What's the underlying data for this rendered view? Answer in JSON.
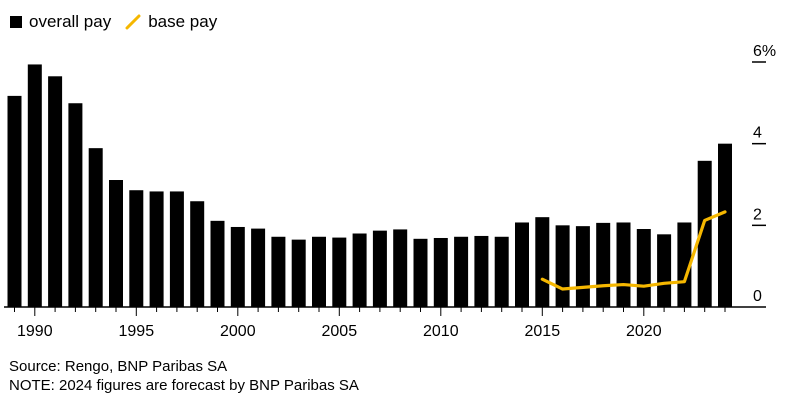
{
  "legend": {
    "bar_label": "overall pay",
    "line_label": "base pay"
  },
  "footer": {
    "source": "Source: Rengo, BNP Paribas SA",
    "note": "NOTE: 2024 figures are forecast by BNP Paribas SA"
  },
  "chart_data": {
    "type": "bar",
    "x": [
      1989,
      1990,
      1991,
      1992,
      1993,
      1994,
      1995,
      1996,
      1997,
      1998,
      1999,
      2000,
      2001,
      2002,
      2003,
      2004,
      2005,
      2006,
      2007,
      2008,
      2009,
      2010,
      2011,
      2012,
      2013,
      2014,
      2015,
      2016,
      2017,
      2018,
      2019,
      2020,
      2021,
      2022,
      2023,
      2024
    ],
    "series": [
      {
        "name": "overall pay",
        "type": "bar",
        "color": "#000000",
        "values": [
          5.17,
          5.94,
          5.65,
          4.99,
          3.89,
          3.11,
          2.86,
          2.83,
          2.83,
          2.59,
          2.11,
          1.96,
          1.92,
          1.72,
          1.65,
          1.72,
          1.7,
          1.8,
          1.87,
          1.9,
          1.67,
          1.69,
          1.72,
          1.74,
          1.72,
          2.07,
          2.2,
          2.0,
          1.98,
          2.06,
          2.07,
          1.91,
          1.78,
          2.07,
          3.58,
          4.0
        ]
      },
      {
        "name": "base pay",
        "type": "line",
        "color": "#f5b700",
        "x": [
          2015,
          2016,
          2017,
          2018,
          2019,
          2020,
          2021,
          2022,
          2023,
          2024
        ],
        "values": [
          0.68,
          0.44,
          0.48,
          0.52,
          0.55,
          0.51,
          0.58,
          0.62,
          2.12,
          2.33
        ]
      }
    ],
    "x_ticks": [
      1990,
      1995,
      2000,
      2005,
      2010,
      2015,
      2020
    ],
    "y_ticks": [
      {
        "value": 0,
        "label": "0"
      },
      {
        "value": 2,
        "label": "2"
      },
      {
        "value": 4,
        "label": "4"
      },
      {
        "value": 6,
        "label": "6%"
      }
    ],
    "ylim": [
      0,
      6
    ],
    "xlim": [
      1989,
      2024
    ],
    "grid": false,
    "legend_position": "top-left"
  }
}
